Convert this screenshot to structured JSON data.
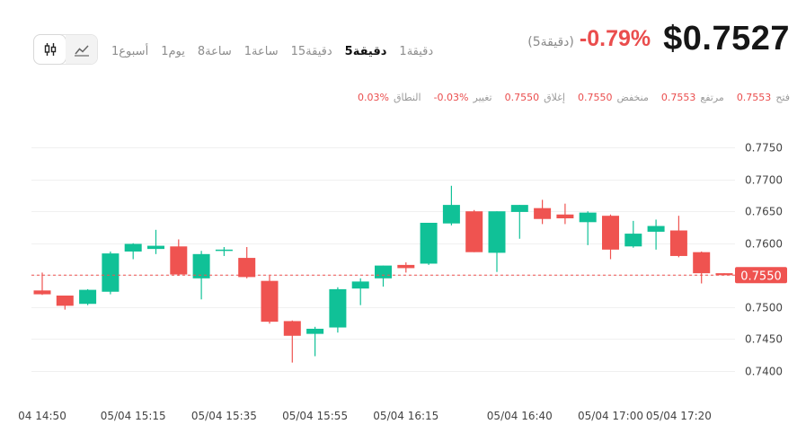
{
  "header": {
    "price": "$0.7527",
    "change": "-0.79%",
    "period": "(5دقيقة)"
  },
  "toolbar": {
    "candle_icon": "candlestick-icon",
    "line_icon": "line-chart-icon",
    "intervals": [
      {
        "label": "1أسبوع",
        "active": false
      },
      {
        "label": "1يوم",
        "active": false
      },
      {
        "label": "8ساعة",
        "active": false
      },
      {
        "label": "1ساعة",
        "active": false
      },
      {
        "label": "15دقيقة",
        "active": false
      },
      {
        "label": "5دقيقة",
        "active": true
      },
      {
        "label": "1دقيقة",
        "active": false
      }
    ]
  },
  "ohlc": {
    "range_label": "النطاق",
    "range_value": "0.03%",
    "change_label": "تغيير",
    "change_value": "-0.03%",
    "close_label": "إغلاق",
    "close_value": "0.7550",
    "low_label": "منخفض",
    "low_value": "0.7550",
    "high_label": "مرتفع",
    "high_value": "0.7553",
    "open_label": "فتح",
    "open_value": "0.7553"
  },
  "colors": {
    "up": "#10c197",
    "down": "#ef5350",
    "grid": "#f0f0f0",
    "axis_text": "#444444",
    "price_tag": "#ef5350"
  },
  "chart_data": {
    "type": "candlestick",
    "ylim": [
      0.7385,
      0.7765
    ],
    "yticks": [
      "0.7750",
      "0.7700",
      "0.7650",
      "0.7600",
      "0.7550",
      "0.7500",
      "0.7450",
      "0.7400"
    ],
    "xticks": [
      {
        "index": 0,
        "label": "04 14:50"
      },
      {
        "index": 4,
        "label": "05/04 15:15"
      },
      {
        "index": 8,
        "label": "05/04 15:35"
      },
      {
        "index": 12,
        "label": "05/04 15:55"
      },
      {
        "index": 16,
        "label": "05/04 16:15"
      },
      {
        "index": 21,
        "label": "05/04 16:40"
      },
      {
        "index": 25,
        "label": "05/04 17:00"
      },
      {
        "index": 28,
        "label": "05/04 17:20"
      }
    ],
    "current_price": 0.755,
    "current_price_label": "0.7550",
    "candles": [
      {
        "o": 0.7526,
        "h": 0.7554,
        "l": 0.7519,
        "c": 0.752
      },
      {
        "o": 0.7518,
        "h": 0.7518,
        "l": 0.7496,
        "c": 0.7502
      },
      {
        "o": 0.7505,
        "h": 0.7528,
        "l": 0.7503,
        "c": 0.7527
      },
      {
        "o": 0.7524,
        "h": 0.7587,
        "l": 0.752,
        "c": 0.7584
      },
      {
        "o": 0.7587,
        "h": 0.76,
        "l": 0.7575,
        "c": 0.7599
      },
      {
        "o": 0.7591,
        "h": 0.7621,
        "l": 0.7583,
        "c": 0.7596
      },
      {
        "o": 0.7595,
        "h": 0.7606,
        "l": 0.7549,
        "c": 0.7551
      },
      {
        "o": 0.7545,
        "h": 0.7588,
        "l": 0.7512,
        "c": 0.7583
      },
      {
        "o": 0.759,
        "h": 0.7594,
        "l": 0.758,
        "c": 0.759
      },
      {
        "o": 0.7577,
        "h": 0.7594,
        "l": 0.7545,
        "c": 0.7547
      },
      {
        "o": 0.7541,
        "h": 0.7549,
        "l": 0.7474,
        "c": 0.7477
      },
      {
        "o": 0.7478,
        "h": 0.7479,
        "l": 0.7413,
        "c": 0.7455
      },
      {
        "o": 0.7458,
        "h": 0.7469,
        "l": 0.7423,
        "c": 0.7466
      },
      {
        "o": 0.7468,
        "h": 0.7531,
        "l": 0.746,
        "c": 0.7528
      },
      {
        "o": 0.7529,
        "h": 0.7545,
        "l": 0.7503,
        "c": 0.754
      },
      {
        "o": 0.7545,
        "h": 0.7565,
        "l": 0.7532,
        "c": 0.7565
      },
      {
        "o": 0.7566,
        "h": 0.757,
        "l": 0.7554,
        "c": 0.7561
      },
      {
        "o": 0.7568,
        "h": 0.7632,
        "l": 0.7566,
        "c": 0.7632
      },
      {
        "o": 0.7631,
        "h": 0.769,
        "l": 0.7628,
        "c": 0.766
      },
      {
        "o": 0.765,
        "h": 0.7652,
        "l": 0.7586,
        "c": 0.7586
      },
      {
        "o": 0.7585,
        "h": 0.765,
        "l": 0.7555,
        "c": 0.765
      },
      {
        "o": 0.7649,
        "h": 0.766,
        "l": 0.7607,
        "c": 0.766
      },
      {
        "o": 0.7655,
        "h": 0.7668,
        "l": 0.763,
        "c": 0.7638
      },
      {
        "o": 0.7645,
        "h": 0.7662,
        "l": 0.763,
        "c": 0.7639
      },
      {
        "o": 0.7633,
        "h": 0.765,
        "l": 0.7597,
        "c": 0.7648
      },
      {
        "o": 0.7643,
        "h": 0.7645,
        "l": 0.7575,
        "c": 0.759
      },
      {
        "o": 0.7595,
        "h": 0.7635,
        "l": 0.7593,
        "c": 0.7615
      },
      {
        "o": 0.7618,
        "h": 0.7637,
        "l": 0.759,
        "c": 0.7627
      },
      {
        "o": 0.762,
        "h": 0.7643,
        "l": 0.7578,
        "c": 0.758
      },
      {
        "o": 0.7586,
        "h": 0.7587,
        "l": 0.7537,
        "c": 0.7553
      },
      {
        "o": 0.7553,
        "h": 0.7553,
        "l": 0.755,
        "c": 0.755
      }
    ]
  }
}
